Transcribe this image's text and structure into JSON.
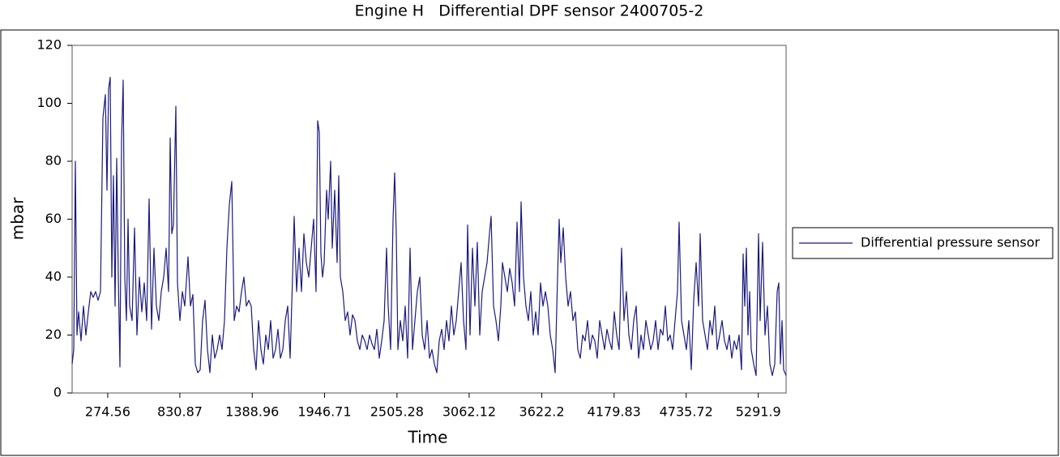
{
  "chart_data": {
    "type": "line",
    "title": "Engine H   Differential DPF sensor 2400705-2",
    "xlabel": "Time",
    "ylabel": "mbar",
    "xlim": [
      0,
      5506.25
    ],
    "ylim": [
      0,
      120
    ],
    "xticks": [
      274.56,
      830.87,
      1388.96,
      1946.71,
      2505.28,
      3062.12,
      3622.2,
      4179.83,
      4735.72,
      5291.9
    ],
    "yticks": [
      0,
      20,
      40,
      60,
      80,
      100,
      120
    ],
    "legend": "right",
    "x": [
      0,
      12.5,
      25,
      37.5,
      50,
      68.75,
      87.5,
      106.25,
      125,
      143.75,
      162.5,
      181.25,
      200,
      218.75,
      237.5,
      256.25,
      268.75,
      281.25,
      293.75,
      306.25,
      318.75,
      331.25,
      343.75,
      356.25,
      368.75,
      381.25,
      393.75,
      406.25,
      418.75,
      431.25,
      443.75,
      462.5,
      481.25,
      500,
      518.75,
      537.5,
      556.25,
      575,
      593.75,
      612.5,
      631.25,
      650,
      668.75,
      687.5,
      706.25,
      725,
      743.75,
      756.25,
      768.75,
      781.25,
      800,
      812.5,
      831.25,
      850,
      868.75,
      893.75,
      912.5,
      931.25,
      950,
      968.75,
      987.5,
      1006.25,
      1025,
      1043.75,
      1062.5,
      1081.25,
      1100,
      1118.75,
      1137.5,
      1156.25,
      1175,
      1193.75,
      1212.5,
      1231.25,
      1250,
      1268.75,
      1287.5,
      1306.25,
      1325,
      1343.75,
      1362.5,
      1381.25,
      1400,
      1418.75,
      1437.5,
      1456.25,
      1475,
      1493.75,
      1512.5,
      1531.25,
      1550,
      1568.75,
      1587.5,
      1606.25,
      1625,
      1643.75,
      1662.5,
      1681.25,
      1700,
      1712.5,
      1731.25,
      1750,
      1768.75,
      1787.5,
      1806.25,
      1825,
      1843.75,
      1862.5,
      1881.25,
      1893.75,
      1906.25,
      1918.75,
      1931.25,
      1943.75,
      1962.5,
      1975,
      1993.75,
      2006.25,
      2025,
      2043.75,
      2056.25,
      2068.75,
      2087.5,
      2106.25,
      2125,
      2143.75,
      2162.5,
      2181.25,
      2200,
      2218.75,
      2237.5,
      2256.25,
      2275,
      2293.75,
      2312.5,
      2331.25,
      2350,
      2368.75,
      2387.5,
      2406.25,
      2425,
      2437.5,
      2456.25,
      2475,
      2487.5,
      2500,
      2512.5,
      2531.25,
      2550,
      2568.75,
      2587.5,
      2606.25,
      2625,
      2643.75,
      2662.5,
      2681.25,
      2700,
      2718.75,
      2737.5,
      2756.25,
      2775,
      2793.75,
      2812.5,
      2831.25,
      2850,
      2868.75,
      2887.5,
      2906.25,
      2925,
      2943.75,
      2962.5,
      2981.25,
      3000,
      3018.75,
      3037.5,
      3050,
      3068.75,
      3087.5,
      3106.25,
      3125,
      3143.75,
      3162.5,
      3181.25,
      3200,
      3218.75,
      3231.25,
      3250,
      3268.75,
      3287.5,
      3306.25,
      3318.75,
      3337.5,
      3356.25,
      3375,
      3393.75,
      3412.5,
      3431.25,
      3450,
      3462.5,
      3481.25,
      3500,
      3518.75,
      3537.5,
      3556.25,
      3575,
      3593.75,
      3612.5,
      3631.25,
      3650,
      3668.75,
      3687.5,
      3706.25,
      3725,
      3743.75,
      3756.25,
      3768.75,
      3787.5,
      3806.25,
      3825,
      3843.75,
      3862.5,
      3881.25,
      3900,
      3918.75,
      3937.5,
      3956.25,
      3975,
      3993.75,
      4012.5,
      4031.25,
      4050,
      4068.75,
      4087.5,
      4106.25,
      4125,
      4143.75,
      4162.5,
      4181.25,
      4200,
      4218.75,
      4237.5,
      4256.25,
      4275,
      4293.75,
      4312.5,
      4331.25,
      4350,
      4368.75,
      4387.5,
      4406.25,
      4425,
      4443.75,
      4462.5,
      4481.25,
      4500,
      4518.75,
      4537.5,
      4556.25,
      4575,
      4593.75,
      4612.5,
      4631.25,
      4650,
      4668.75,
      4681.25,
      4700,
      4718.75,
      4737.5,
      4756.25,
      4775,
      4793.75,
      4812.5,
      4831.25,
      4843.75,
      4862.5,
      4881.25,
      4900,
      4918.75,
      4937.5,
      4956.25,
      4975,
      4993.75,
      5012.5,
      5031.25,
      5050,
      5068.75,
      5087.5,
      5106.25,
      5125,
      5143.75,
      5162.5,
      5175,
      5187.5,
      5200,
      5212.5,
      5225,
      5237.5,
      5256.25,
      5275,
      5293.75,
      5306.25,
      5325,
      5343.75,
      5362.5,
      5381.25,
      5400,
      5418.75,
      5437.5,
      5450,
      5462.5,
      5475,
      5487.5,
      5506.25
    ],
    "series": [
      {
        "name": "Differential pressure sensor",
        "color": "#1a1a7e",
        "values": [
          10,
          15,
          80,
          20,
          28,
          18,
          30,
          20,
          28,
          35,
          33,
          35,
          32,
          35,
          95,
          103,
          70,
          105,
          109,
          40,
          75,
          30,
          81,
          40,
          9,
          87,
          108,
          40,
          25,
          60,
          30,
          25,
          57,
          20,
          40,
          28,
          38,
          25,
          67,
          22,
          50,
          30,
          25,
          35,
          40,
          50,
          35,
          88,
          55,
          58,
          99,
          38,
          25,
          35,
          30,
          47,
          30,
          34,
          10,
          7,
          8,
          25,
          32,
          15,
          7,
          20,
          12,
          15,
          20,
          15,
          25,
          50,
          65,
          73,
          25,
          30,
          28,
          35,
          40,
          30,
          32,
          30,
          15,
          8,
          25,
          15,
          10,
          20,
          15,
          25,
          12,
          15,
          22,
          12,
          15,
          25,
          30,
          12,
          40,
          61,
          35,
          50,
          35,
          55,
          45,
          40,
          50,
          60,
          35,
          94,
          90,
          48,
          40,
          45,
          70,
          60,
          80,
          50,
          70,
          45,
          75,
          40,
          35,
          25,
          28,
          20,
          27,
          25,
          18,
          15,
          20,
          18,
          15,
          20,
          17,
          15,
          22,
          12,
          18,
          25,
          50,
          30,
          15,
          60,
          76,
          55,
          15,
          25,
          18,
          30,
          12,
          50,
          15,
          25,
          35,
          40,
          20,
          15,
          25,
          12,
          15,
          10,
          7,
          18,
          22,
          15,
          25,
          18,
          30,
          20,
          25,
          35,
          45,
          25,
          15,
          58,
          20,
          50,
          30,
          52,
          20,
          35,
          40,
          45,
          55,
          61,
          30,
          25,
          18,
          30,
          45,
          40,
          35,
          43,
          38,
          30,
          59,
          35,
          66,
          40,
          30,
          25,
          35,
          20,
          28,
          20,
          38,
          30,
          35,
          30,
          20,
          15,
          7,
          40,
          60,
          45,
          57,
          40,
          30,
          35,
          25,
          28,
          15,
          12,
          20,
          18,
          25,
          15,
          20,
          18,
          12,
          25,
          20,
          15,
          22,
          18,
          15,
          28,
          20,
          15,
          50,
          25,
          35,
          20,
          15,
          25,
          30,
          12,
          20,
          15,
          25,
          20,
          15,
          18,
          25,
          15,
          22,
          20,
          30,
          18,
          20,
          15,
          25,
          35,
          59,
          25,
          20,
          15,
          25,
          8,
          32,
          45,
          30,
          55,
          25,
          20,
          15,
          25,
          20,
          30,
          15,
          20,
          25,
          18,
          15,
          20,
          12,
          18,
          15,
          20,
          8,
          48,
          30,
          50,
          20,
          35,
          15,
          10,
          6,
          55,
          25,
          52,
          20,
          30,
          10,
          6,
          10,
          35,
          38,
          10,
          25,
          8,
          6
        ]
      }
    ]
  }
}
